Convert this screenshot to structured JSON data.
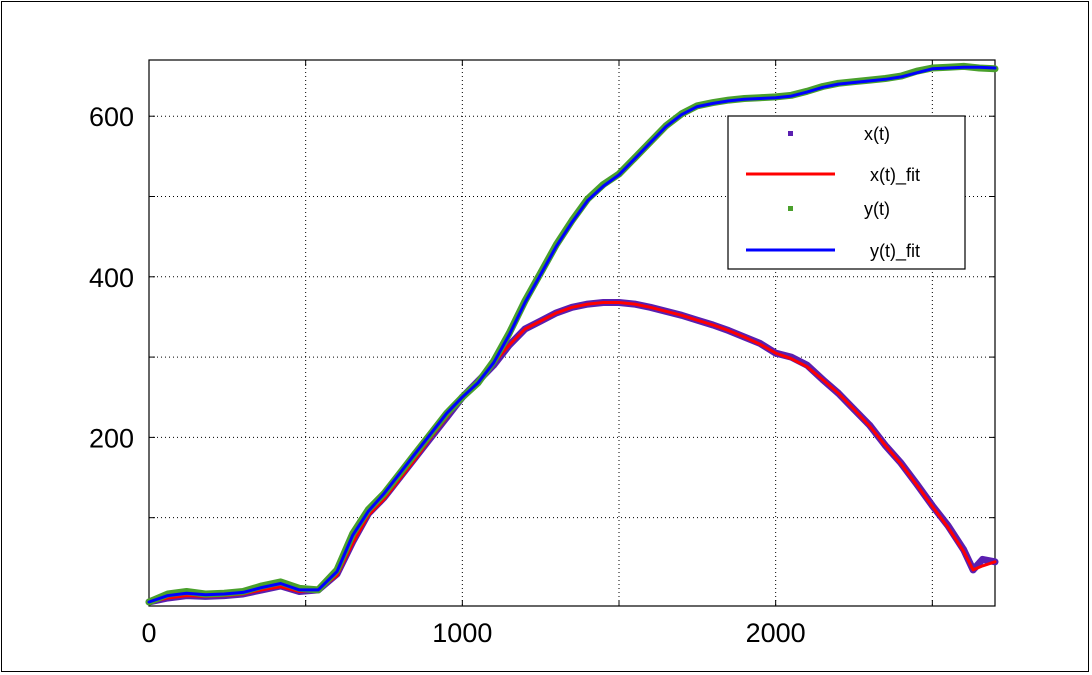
{
  "chart_data": {
    "type": "line",
    "title": "",
    "xlabel": "",
    "ylabel": "",
    "xlim": [
      0,
      2700
    ],
    "ylim": [
      -10,
      670
    ],
    "xticks": [
      0,
      1000,
      2000
    ],
    "yticks": [
      200,
      400,
      600
    ],
    "xtick_labels": [
      "0",
      "1000",
      "2000"
    ],
    "ytick_labels": [
      "200",
      "400",
      "600"
    ],
    "grid": true,
    "legend_position": "top-right",
    "legend": [
      "x(t)",
      "x(t)_fit",
      "y(t)",
      "y(t)_fit"
    ],
    "series": [
      {
        "name": "x(t)",
        "style": "markers",
        "color": "#5a1fb0",
        "x": [
          0,
          60,
          120,
          180,
          240,
          300,
          360,
          420,
          480,
          540,
          600,
          650,
          700,
          750,
          800,
          850,
          900,
          950,
          1000,
          1050,
          1100,
          1150,
          1200,
          1250,
          1300,
          1350,
          1400,
          1450,
          1500,
          1550,
          1600,
          1650,
          1700,
          1750,
          1800,
          1850,
          1900,
          1950,
          2000,
          2050,
          2100,
          2150,
          2200,
          2250,
          2300,
          2350,
          2400,
          2450,
          2500,
          2550,
          2600,
          2630,
          2660,
          2700
        ],
        "y": [
          -5,
          0,
          3,
          2,
          3,
          5,
          10,
          15,
          8,
          10,
          30,
          70,
          105,
          125,
          150,
          175,
          200,
          225,
          250,
          270,
          290,
          315,
          335,
          345,
          355,
          362,
          366,
          368,
          368,
          366,
          362,
          357,
          352,
          346,
          340,
          333,
          325,
          317,
          305,
          300,
          290,
          272,
          255,
          235,
          215,
          190,
          168,
          142,
          115,
          90,
          60,
          35,
          48,
          45
        ]
      },
      {
        "name": "x(t)_fit",
        "style": "line",
        "color": "#ff0000",
        "x": [
          0,
          60,
          120,
          180,
          240,
          300,
          360,
          420,
          480,
          540,
          600,
          650,
          700,
          750,
          800,
          850,
          900,
          950,
          1000,
          1050,
          1100,
          1150,
          1200,
          1250,
          1300,
          1350,
          1400,
          1450,
          1500,
          1550,
          1600,
          1650,
          1700,
          1750,
          1800,
          1850,
          1900,
          1950,
          2000,
          2050,
          2100,
          2150,
          2200,
          2250,
          2300,
          2350,
          2400,
          2450,
          2500,
          2550,
          2600,
          2630,
          2660,
          2700
        ],
        "y": [
          -5,
          0,
          3,
          2,
          3,
          5,
          10,
          14,
          8,
          10,
          28,
          68,
          103,
          123,
          148,
          173,
          200,
          225,
          250,
          270,
          292,
          315,
          335,
          345,
          355,
          362,
          366,
          368,
          368,
          366,
          362,
          357,
          352,
          346,
          340,
          333,
          325,
          316,
          305,
          298,
          288,
          272,
          255,
          235,
          214,
          190,
          167,
          141,
          114,
          88,
          58,
          35,
          40,
          45
        ]
      },
      {
        "name": "y(t)",
        "style": "markers",
        "color": "#4aa02c",
        "x": [
          0,
          60,
          120,
          180,
          240,
          300,
          360,
          420,
          480,
          540,
          600,
          650,
          700,
          750,
          800,
          850,
          900,
          950,
          1000,
          1050,
          1100,
          1150,
          1200,
          1250,
          1300,
          1350,
          1400,
          1450,
          1500,
          1550,
          1600,
          1650,
          1700,
          1750,
          1800,
          1850,
          1900,
          1950,
          2000,
          2050,
          2100,
          2150,
          2200,
          2250,
          2300,
          2350,
          2400,
          2450,
          2500,
          2550,
          2600,
          2650,
          2700
        ],
        "y": [
          -5,
          5,
          8,
          5,
          6,
          8,
          15,
          20,
          12,
          10,
          35,
          80,
          110,
          130,
          155,
          180,
          205,
          230,
          250,
          268,
          295,
          330,
          370,
          405,
          440,
          470,
          497,
          515,
          528,
          548,
          568,
          588,
          603,
          613,
          617,
          620,
          622,
          623,
          624,
          626,
          631,
          637,
          641,
          643,
          645,
          647,
          650,
          656,
          660,
          661,
          662,
          660,
          659
        ]
      },
      {
        "name": "y(t)_fit",
        "style": "line",
        "color": "#0000ff",
        "x": [
          0,
          60,
          120,
          180,
          240,
          300,
          360,
          420,
          480,
          540,
          600,
          650,
          700,
          750,
          800,
          850,
          900,
          950,
          1000,
          1050,
          1100,
          1150,
          1200,
          1250,
          1300,
          1350,
          1400,
          1450,
          1500,
          1550,
          1600,
          1650,
          1700,
          1750,
          1800,
          1850,
          1900,
          1950,
          2000,
          2050,
          2100,
          2150,
          2200,
          2250,
          2300,
          2350,
          2400,
          2450,
          2500,
          2550,
          2600,
          2650,
          2700
        ],
        "y": [
          -5,
          3,
          6,
          4,
          5,
          7,
          13,
          18,
          10,
          10,
          33,
          78,
          108,
          130,
          155,
          180,
          205,
          230,
          250,
          268,
          293,
          328,
          368,
          403,
          438,
          468,
          495,
          513,
          527,
          547,
          567,
          587,
          602,
          612,
          616,
          619,
          621,
          622,
          623,
          625,
          630,
          636,
          640,
          642,
          644,
          646,
          649,
          654,
          659,
          660,
          661,
          661,
          660
        ]
      }
    ]
  }
}
